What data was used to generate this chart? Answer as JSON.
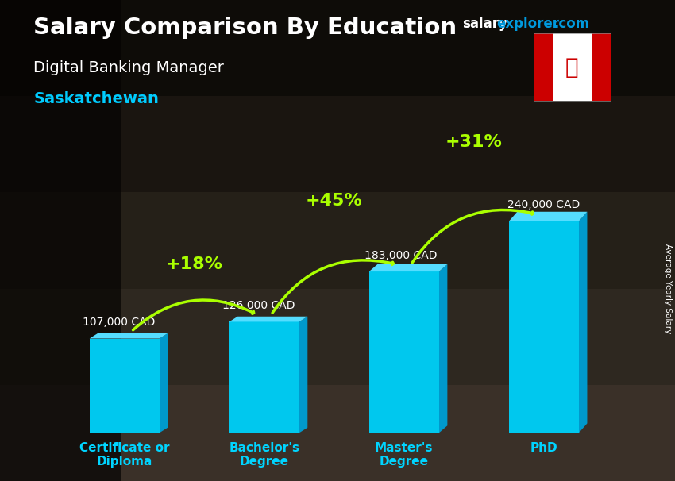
{
  "title_main": "Salary Comparison By Education",
  "title_sub": "Digital Banking Manager",
  "title_region": "Saskatchewan",
  "watermark_salary": "salary",
  "watermark_explorer": "explorer",
  "watermark_com": ".com",
  "ylabel_rotated": "Average Yearly Salary",
  "categories": [
    "Certificate or\nDiploma",
    "Bachelor's\nDegree",
    "Master's\nDegree",
    "PhD"
  ],
  "values": [
    107000,
    126000,
    183000,
    240000
  ],
  "labels": [
    "107,000 CAD",
    "126,000 CAD",
    "183,000 CAD",
    "240,000 CAD"
  ],
  "pct_labels": [
    "+18%",
    "+45%",
    "+31%"
  ],
  "bar_color_face": "#00c8ee",
  "bar_color_top": "#55ddff",
  "bar_color_side": "#0099cc",
  "bg_dark": "#1a1c2a",
  "bg_mid": "#2d2f3f",
  "title_color": "#ffffff",
  "subtitle_color": "#ffffff",
  "region_color": "#00ccff",
  "label_color": "#ffffff",
  "pct_color": "#aaff00",
  "xticklabel_color": "#00d4ff",
  "watermark_salary_color": "#ffffff",
  "watermark_explorer_color": "#00aaff",
  "bar_width": 0.5,
  "ylim": [
    0,
    300000
  ],
  "bar_positions": [
    0,
    1,
    2,
    3
  ]
}
